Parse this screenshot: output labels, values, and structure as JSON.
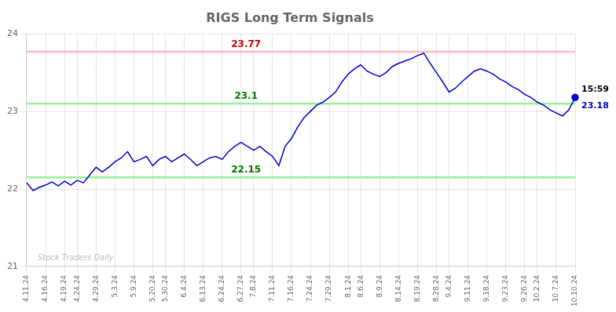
{
  "chart_data": {
    "type": "line",
    "title": "RIGS Long Term Signals",
    "categories": [
      "4.11.24",
      null,
      null,
      "4.16.24",
      null,
      null,
      "4.19.24",
      null,
      "4.24.24",
      null,
      null,
      "4.29.24",
      null,
      null,
      "5.3.24",
      null,
      null,
      "5.9.24",
      null,
      null,
      "5.20.24",
      null,
      "5.30.24",
      null,
      null,
      "6.4.24",
      null,
      null,
      "6.13.24",
      null,
      null,
      "6.24.24",
      null,
      null,
      "6.27.24",
      null,
      "7.8.24",
      null,
      null,
      "7.11.24",
      null,
      null,
      "7.16.24",
      null,
      null,
      "7.24.24",
      null,
      null,
      "7.29.24",
      null,
      null,
      "8.1.24",
      null,
      "8.6.24",
      null,
      null,
      "8.9.24",
      null,
      null,
      "8.14.24",
      null,
      null,
      "8.19.24",
      null,
      null,
      "8.28.24",
      null,
      "9.4.24",
      null,
      null,
      "9.11.24",
      null,
      null,
      "9.18.24",
      null,
      null,
      "9.23.24",
      null,
      null,
      "9.26.24",
      null,
      "10.2.24",
      null,
      null,
      "10.7.24",
      null,
      null,
      "10.10.24"
    ],
    "values": [
      22.08,
      21.98,
      22.02,
      22.05,
      22.09,
      22.04,
      22.1,
      22.05,
      22.11,
      22.08,
      22.18,
      22.28,
      22.22,
      22.28,
      22.35,
      22.4,
      22.48,
      22.35,
      22.38,
      22.42,
      22.3,
      22.38,
      22.42,
      22.35,
      22.4,
      22.45,
      22.38,
      22.3,
      22.35,
      22.4,
      22.42,
      22.38,
      22.48,
      22.55,
      22.6,
      22.55,
      22.5,
      22.55,
      22.48,
      22.42,
      22.3,
      22.55,
      22.65,
      22.8,
      22.92,
      23.0,
      23.08,
      23.12,
      23.18,
      23.25,
      23.38,
      23.48,
      23.55,
      23.6,
      23.52,
      23.48,
      23.45,
      23.5,
      23.58,
      23.62,
      23.65,
      23.68,
      23.72,
      23.75,
      23.62,
      23.5,
      23.38,
      23.25,
      23.3,
      23.38,
      23.45,
      23.52,
      23.55,
      23.52,
      23.48,
      23.42,
      23.38,
      23.32,
      23.28,
      23.22,
      23.18,
      23.12,
      23.08,
      23.02,
      22.98,
      22.94,
      23.02,
      23.18
    ],
    "color": "#0000cc",
    "ylim": [
      21.0,
      24.0
    ],
    "yticks": [
      21,
      22,
      23,
      24
    ],
    "grid": true,
    "hlines": [
      {
        "value": 23.77,
        "label": "23.77",
        "color": "#ffbbbb",
        "label_color": "#cc0000"
      },
      {
        "value": 23.1,
        "label": "23.1",
        "color": "#99ee99",
        "label_color": "#007700"
      },
      {
        "value": 22.15,
        "label": "22.15",
        "color": "#99ee99",
        "label_color": "#007700"
      }
    ],
    "annotations": [
      {
        "text": "15:59",
        "color": "#000000"
      },
      {
        "text": "23.18",
        "color": "#0000cc"
      }
    ],
    "watermark": "Stock Traders Daily"
  }
}
